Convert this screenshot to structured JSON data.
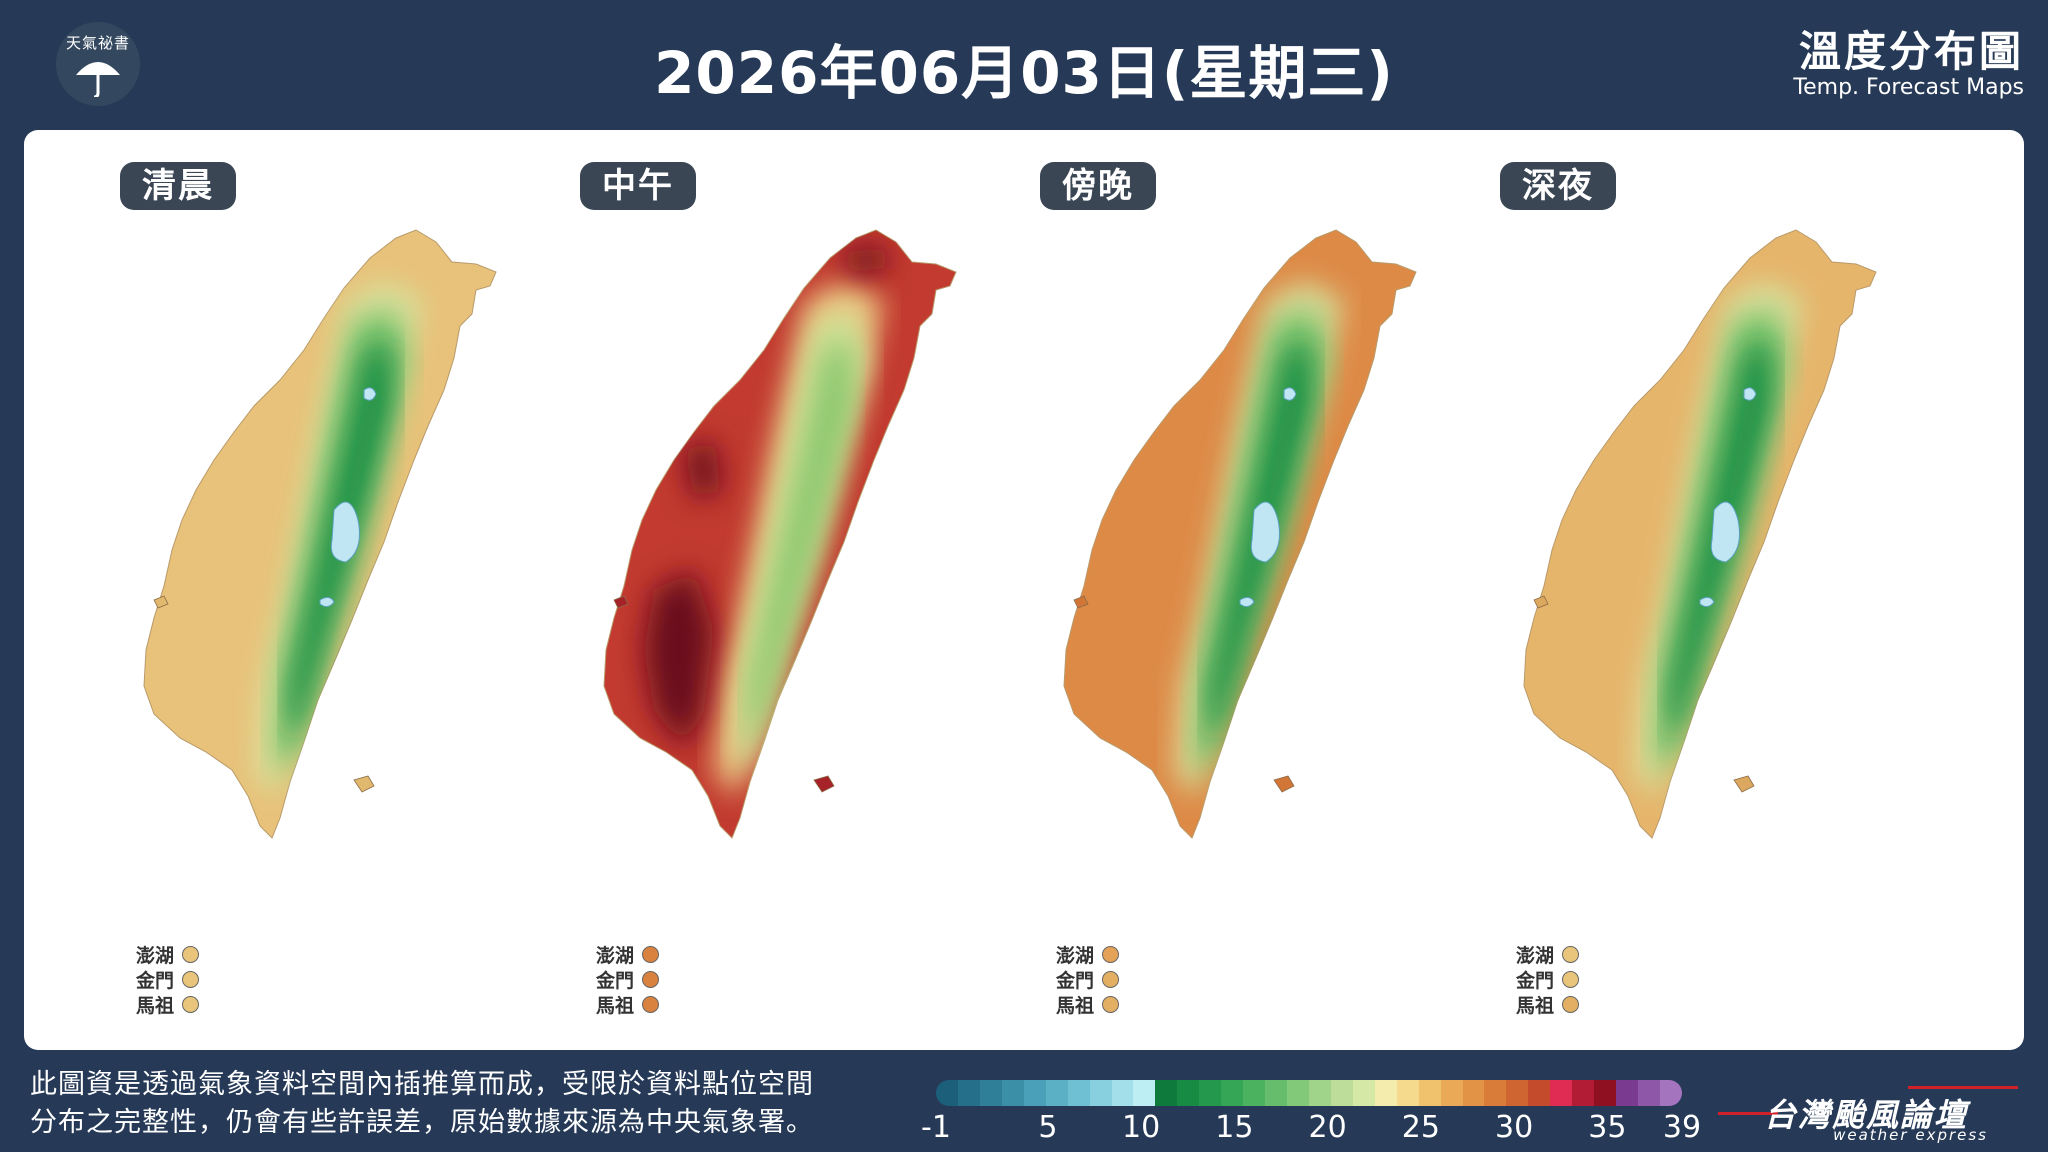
{
  "header": {
    "logo_text": "天氣祕書",
    "title": "2026年06月03日(星期三)",
    "brand_zh": "溫度分布圖",
    "brand_en": "Temp. Forecast Maps"
  },
  "maps": [
    {
      "label": "清晨",
      "scheme": "morning",
      "islands": [
        {
          "name": "澎湖",
          "color": "#e8c57a"
        },
        {
          "name": "金門",
          "color": "#e8c57a"
        },
        {
          "name": "馬祖",
          "color": "#e8c57a"
        }
      ]
    },
    {
      "label": "中午",
      "scheme": "noon",
      "islands": [
        {
          "name": "澎湖",
          "color": "#d9813f"
        },
        {
          "name": "金門",
          "color": "#d9813f"
        },
        {
          "name": "馬祖",
          "color": "#d9813f"
        }
      ]
    },
    {
      "label": "傍晚",
      "scheme": "evening",
      "islands": [
        {
          "name": "澎湖",
          "color": "#e3a258"
        },
        {
          "name": "金門",
          "color": "#e3b063"
        },
        {
          "name": "馬祖",
          "color": "#e3b063"
        }
      ]
    },
    {
      "label": "深夜",
      "scheme": "night",
      "islands": [
        {
          "name": "澎湖",
          "color": "#e8c57a"
        },
        {
          "name": "金門",
          "color": "#e8c57a"
        },
        {
          "name": "馬祖",
          "color": "#e3b063"
        }
      ]
    }
  ],
  "footer": {
    "note_line1": "此圖資是透過氣象資料空間內插推算而成，受限於資料點位空間",
    "note_line2": "分布之完整性，仍會有些許誤差，原始數據來源為中央氣象署。",
    "forum_zh": "台灣颱風論壇",
    "forum_en": "weather express"
  },
  "scale": {
    "ticks": [
      "-1",
      "5",
      "10",
      "15",
      "20",
      "25",
      "30",
      "35",
      "39"
    ],
    "tick_values": [
      -1,
      5,
      10,
      15,
      20,
      25,
      30,
      35,
      39
    ],
    "colors": [
      "#1b5f7a",
      "#256f8a",
      "#2f7f98",
      "#3b90a8",
      "#4aa0b8",
      "#5cb0c6",
      "#70c0d3",
      "#88d0df",
      "#a2dfea",
      "#bdeef4",
      "#0e7b3c",
      "#178a44",
      "#24984d",
      "#35a656",
      "#4bb260",
      "#66be6c",
      "#82c97a",
      "#9fd48a",
      "#bcde9a",
      "#d6e8a6",
      "#f3ecac",
      "#f5d98c",
      "#f0c26e",
      "#e9a957",
      "#e29345",
      "#d97c39",
      "#cf6531",
      "#c44b2c",
      "#e02b52",
      "#b31c35",
      "#8f1020",
      "#7a3a8f",
      "#8e57a8",
      "#a474bf"
    ]
  }
}
